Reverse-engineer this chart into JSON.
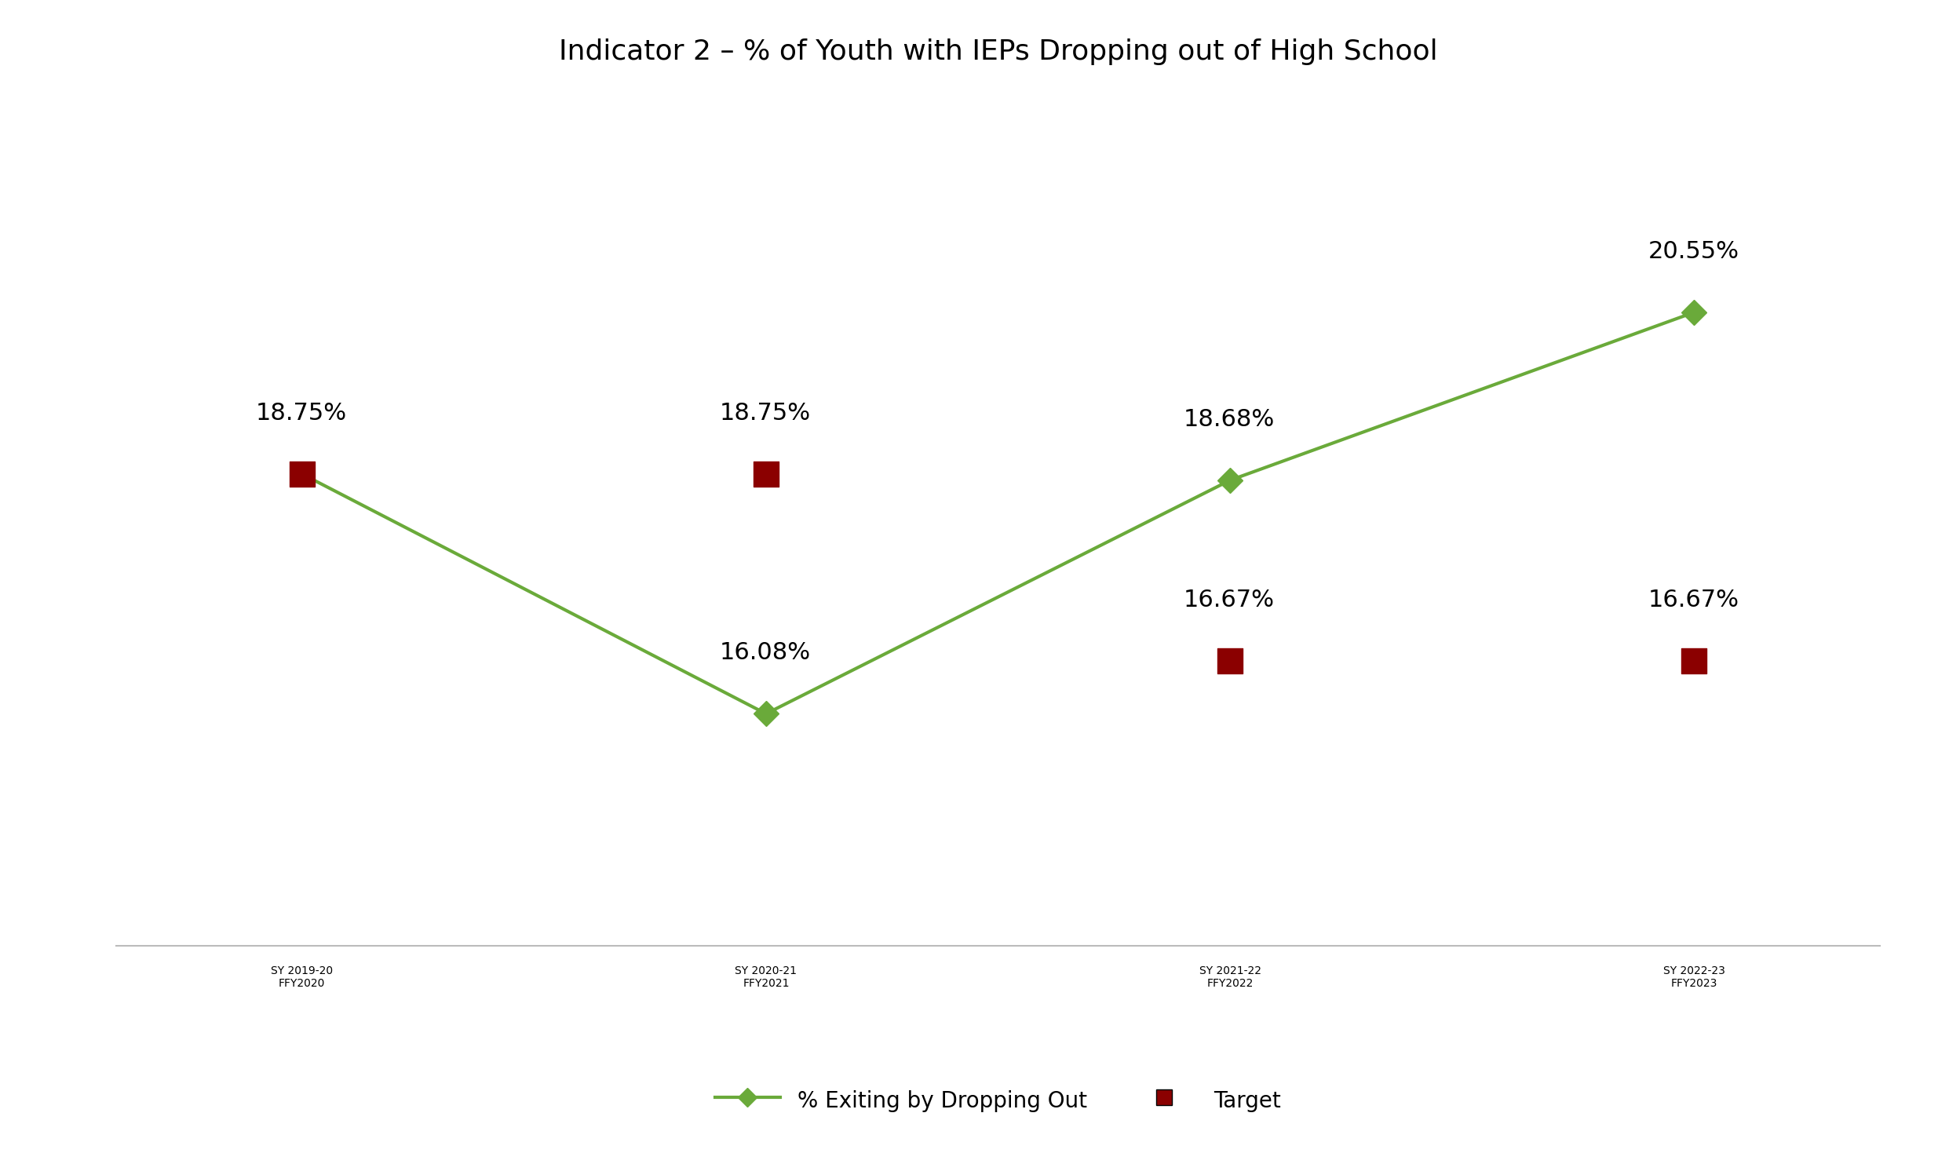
{
  "title": "Indicator 2 – % of Youth with IEPs Dropping out of High School",
  "x_labels": [
    "SY 2019-20\nFFY2020",
    "SY 2020-21\nFFY2021",
    "SY 2021-22\nFFY2022",
    "SY 2022-23\nFFY2023"
  ],
  "x_positions": [
    0,
    1,
    2,
    3
  ],
  "line_values": [
    18.75,
    16.08,
    18.68,
    20.55
  ],
  "target_values": [
    18.75,
    18.75,
    16.67,
    16.67
  ],
  "line_labels": [
    "18.75%",
    "16.08%",
    "18.68%",
    "20.55%"
  ],
  "target_labels": [
    "18.75%",
    "18.75%",
    "16.67%",
    "16.67%"
  ],
  "line_color": "#6aaa3a",
  "target_color": "#8b0000",
  "line_label": "% Exiting by Dropping Out",
  "target_label": "Target",
  "background_color": "#ffffff",
  "title_fontsize": 26,
  "label_fontsize": 22,
  "tick_fontsize": 20,
  "legend_fontsize": 20,
  "ylim": [
    13.5,
    23.0
  ],
  "xlim": [
    -0.4,
    3.4
  ]
}
